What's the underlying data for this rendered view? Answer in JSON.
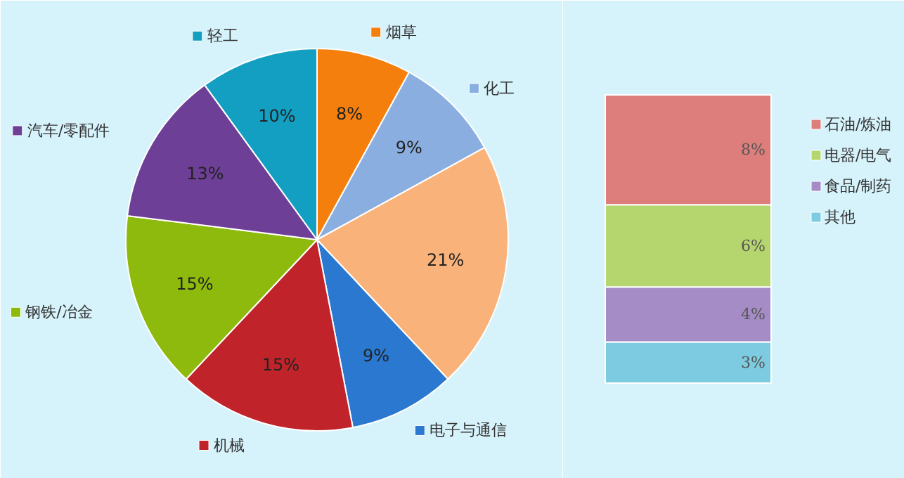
{
  "chart_data": [
    {
      "type": "pie",
      "legend": "top left",
      "categories": [
        "烟草",
        "化工",
        null,
        "电子与通信",
        "机械",
        "钢铁/冶金",
        "汽车/零配件",
        "轻工"
      ],
      "values": [
        8,
        9,
        21,
        9,
        15,
        15,
        13,
        10
      ],
      "colors": [
        "#f57f0c",
        "#8aaee0",
        "#f9b27a",
        "#2a78cf",
        "#c0242a",
        "#8dba0c",
        "#6e3f96",
        "#139fc2"
      ],
      "value_labels": [
        "8%",
        "9%",
        "21%",
        "9%",
        "15%",
        "15%",
        "13%",
        "10%"
      ]
    },
    {
      "type": "bar",
      "stacked": true,
      "categories": [
        null
      ],
      "legend": "right",
      "series": [
        {
          "name": "其他",
          "color": "#7ccbe0",
          "values": [
            3
          ],
          "value_labels": [
            "3%"
          ]
        },
        {
          "name": "食品/制药",
          "color": "#a68cc6",
          "values": [
            4
          ],
          "value_labels": [
            "4%"
          ]
        },
        {
          "name": "电器/电气",
          "color": "#b5d66e",
          "values": [
            6
          ],
          "value_labels": [
            "6%"
          ]
        },
        {
          "name": "石油/炼油",
          "color": "#dd7e7c",
          "values": [
            8
          ],
          "value_labels": [
            "8%"
          ]
        }
      ]
    }
  ]
}
